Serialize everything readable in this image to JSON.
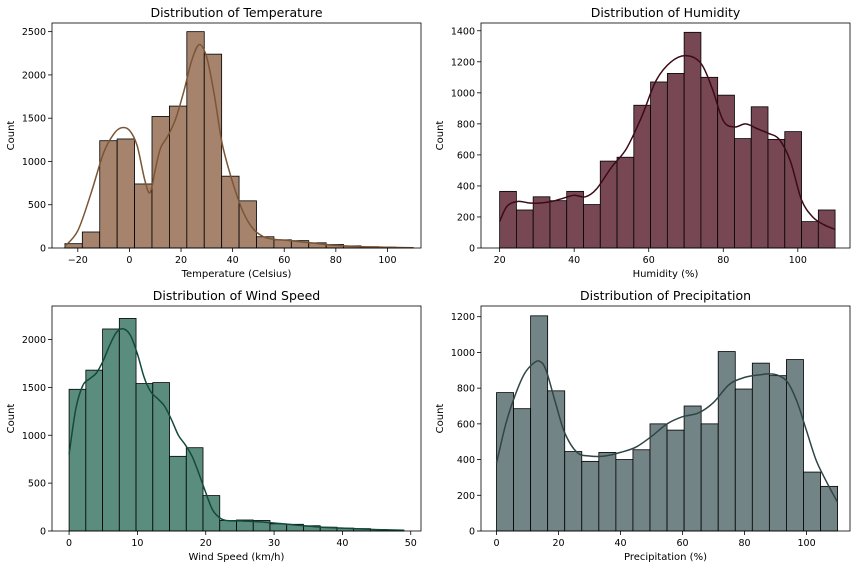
{
  "chart_data": [
    {
      "type": "bar",
      "title": "Distribution of Temperature",
      "xlabel": "Temperature (Celsius)",
      "ylabel": "Count",
      "xlim": [
        -30,
        113
      ],
      "ylim": [
        0,
        2600
      ],
      "xticks": [
        -20,
        0,
        20,
        40,
        60,
        80,
        100
      ],
      "yticks": [
        0,
        500,
        1000,
        1500,
        2000,
        2500
      ],
      "bin_edges": [
        -25,
        -18.25,
        -11.5,
        -4.75,
        2,
        8.75,
        15.5,
        22.25,
        29,
        35.75,
        42.5,
        49.25,
        56,
        62.75,
        69.5,
        76.25,
        83,
        89.75,
        96.5,
        103.25,
        110
      ],
      "values": [
        50,
        185,
        1240,
        1260,
        740,
        1520,
        1640,
        2500,
        2240,
        830,
        545,
        130,
        95,
        85,
        60,
        40,
        25,
        15,
        10,
        5
      ],
      "kde_x": [
        -25,
        -20,
        -15,
        -10,
        -6,
        -3,
        0,
        3,
        6,
        8,
        10,
        12,
        15,
        18,
        21,
        24,
        27,
        30,
        33,
        36,
        40,
        44,
        48,
        52,
        56,
        62,
        70,
        80,
        90,
        100,
        110
      ],
      "kde_y": [
        20,
        200,
        620,
        1100,
        1320,
        1390,
        1360,
        1180,
        780,
        640,
        900,
        1150,
        1300,
        1500,
        1800,
        2150,
        2350,
        2200,
        1750,
        1200,
        760,
        420,
        220,
        130,
        100,
        85,
        60,
        30,
        15,
        8,
        3
      ],
      "bar_color": "#a6836c",
      "line_color": "#7b5535"
    },
    {
      "type": "bar",
      "title": "Distribution of Humidity",
      "xlabel": "Humidity (%)",
      "ylabel": "Count",
      "xlim": [
        15,
        114
      ],
      "ylim": [
        0,
        1450
      ],
      "xticks": [
        20,
        40,
        60,
        80,
        100
      ],
      "yticks": [
        0,
        200,
        400,
        600,
        800,
        1000,
        1200,
        1400
      ],
      "bin_edges": [
        20,
        24.5,
        29,
        33.5,
        38,
        42.5,
        47,
        51.5,
        56,
        60.5,
        65,
        69.5,
        74,
        78.5,
        83,
        87.5,
        92,
        96.5,
        101,
        105.5,
        110
      ],
      "values": [
        365,
        245,
        330,
        305,
        365,
        280,
        560,
        585,
        920,
        1070,
        1125,
        1390,
        1100,
        985,
        705,
        910,
        700,
        750,
        170,
        245
      ],
      "kde_x": [
        20,
        22,
        25,
        28,
        31,
        34,
        37,
        40,
        43,
        46,
        50,
        54,
        58,
        62,
        66,
        70,
        74,
        77,
        80,
        83,
        86,
        89,
        92,
        95,
        98,
        101,
        104,
        107,
        110
      ],
      "kde_y": [
        170,
        270,
        300,
        290,
        290,
        300,
        320,
        340,
        330,
        380,
        520,
        640,
        840,
        1080,
        1200,
        1240,
        1190,
        1030,
        820,
        780,
        800,
        770,
        740,
        700,
        560,
        310,
        200,
        150,
        120
      ],
      "bar_color": "#774853",
      "line_color": "#3d0a17"
    },
    {
      "type": "bar",
      "title": "Distribution of Wind Speed",
      "xlabel": "Wind Speed (km/h)",
      "ylabel": "Count",
      "xlim": [
        -2.5,
        51.5
      ],
      "ylim": [
        0,
        2350
      ],
      "xticks": [
        0,
        10,
        20,
        30,
        40,
        50
      ],
      "yticks": [
        0,
        500,
        1000,
        1500,
        2000
      ],
      "bin_edges": [
        0,
        2.45,
        4.9,
        7.35,
        9.8,
        12.25,
        14.7,
        17.15,
        19.6,
        22.05,
        24.5,
        26.95,
        29.4,
        31.85,
        34.3,
        36.75,
        39.2,
        41.65,
        44.1,
        46.55,
        49
      ],
      "values": [
        1480,
        1680,
        2110,
        2220,
        1540,
        1550,
        780,
        870,
        370,
        110,
        115,
        110,
        75,
        70,
        55,
        40,
        30,
        25,
        15,
        10
      ],
      "kde_x": [
        0,
        1,
        2,
        3,
        4,
        5,
        6,
        7,
        8,
        9,
        10,
        11,
        12,
        13,
        14,
        15,
        16,
        17,
        18,
        19,
        20,
        21,
        22,
        23,
        25,
        28,
        32,
        36,
        40,
        45,
        49
      ],
      "kde_y": [
        800,
        1280,
        1520,
        1590,
        1650,
        1780,
        1950,
        2080,
        2110,
        2040,
        1850,
        1600,
        1450,
        1380,
        1300,
        1160,
        1000,
        900,
        780,
        600,
        400,
        220,
        140,
        110,
        105,
        95,
        70,
        45,
        30,
        15,
        8
      ],
      "bar_color": "#5a8d7d",
      "line_color": "#134a3c"
    },
    {
      "type": "bar",
      "title": "Distribution of Precipitation",
      "xlabel": "Precipitation (%)",
      "ylabel": "Count",
      "xlim": [
        -5,
        114
      ],
      "ylim": [
        0,
        1260
      ],
      "xticks": [
        0,
        20,
        40,
        60,
        80,
        100
      ],
      "yticks": [
        0,
        200,
        400,
        600,
        800,
        1000,
        1200
      ],
      "bin_edges": [
        0,
        5.5,
        11,
        16.5,
        22,
        27.5,
        33,
        38.5,
        44,
        49.5,
        55,
        60.5,
        66,
        71.5,
        77,
        82.5,
        88,
        93.5,
        99,
        104.5,
        110
      ],
      "values": [
        775,
        685,
        1205,
        785,
        445,
        390,
        440,
        400,
        455,
        600,
        565,
        700,
        600,
        1005,
        795,
        940,
        870,
        960,
        330,
        250
      ],
      "kde_x": [
        0,
        3,
        6,
        9,
        12,
        14,
        16,
        19,
        22,
        26,
        30,
        35,
        40,
        45,
        50,
        55,
        60,
        65,
        70,
        75,
        80,
        85,
        88,
        91,
        94,
        97,
        100,
        103,
        106,
        110
      ],
      "kde_y": [
        380,
        600,
        760,
        880,
        940,
        950,
        900,
        720,
        550,
        440,
        420,
        420,
        440,
        470,
        530,
        600,
        640,
        660,
        720,
        820,
        860,
        875,
        880,
        870,
        830,
        720,
        560,
        400,
        290,
        160
      ],
      "bar_color": "#728486",
      "line_color": "#2f4546"
    }
  ]
}
